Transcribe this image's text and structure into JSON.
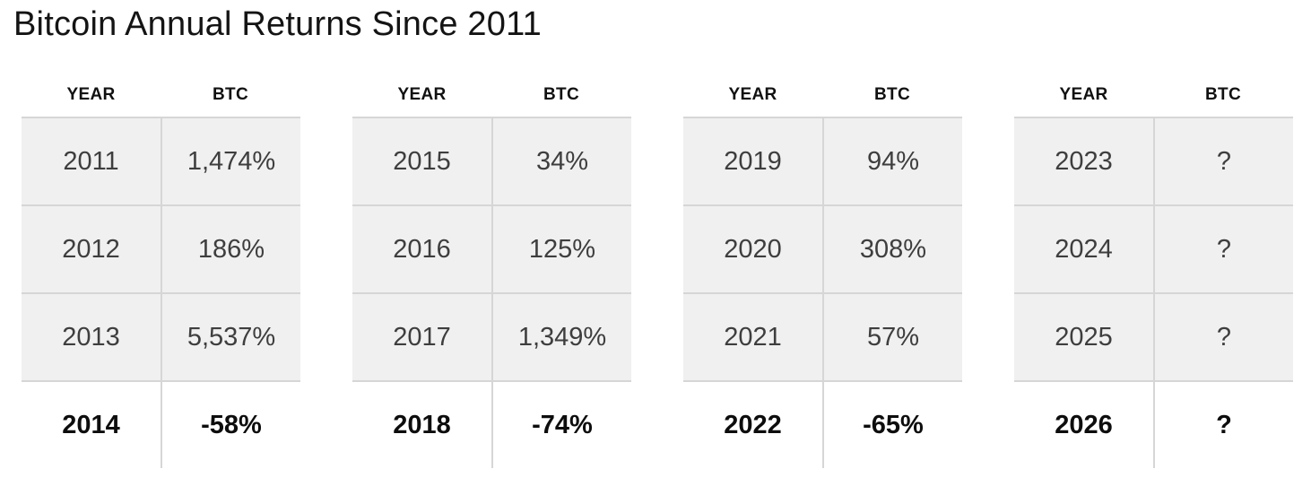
{
  "title": "Bitcoin Annual Returns Since 2011",
  "chart_data": {
    "type": "table",
    "title": "Bitcoin Annual Returns Since 2011",
    "columns": [
      "YEAR",
      "BTC"
    ],
    "groups": [
      {
        "headers": [
          "YEAR",
          "BTC"
        ],
        "rows": [
          [
            "2011",
            "1,474%"
          ],
          [
            "2012",
            "186%"
          ],
          [
            "2013",
            "5,537%"
          ]
        ],
        "final": [
          "2014",
          "-58%"
        ]
      },
      {
        "headers": [
          "YEAR",
          "BTC"
        ],
        "rows": [
          [
            "2015",
            "34%"
          ],
          [
            "2016",
            "125%"
          ],
          [
            "2017",
            "1,349%"
          ]
        ],
        "final": [
          "2018",
          "-74%"
        ]
      },
      {
        "headers": [
          "YEAR",
          "BTC"
        ],
        "rows": [
          [
            "2019",
            "94%"
          ],
          [
            "2020",
            "308%"
          ],
          [
            "2021",
            "57%"
          ]
        ],
        "final": [
          "2022",
          "-65%"
        ]
      },
      {
        "headers": [
          "YEAR",
          "BTC"
        ],
        "rows": [
          [
            "2023",
            "?"
          ],
          [
            "2024",
            "?"
          ],
          [
            "2025",
            "?"
          ]
        ],
        "final": [
          "2026",
          "?"
        ]
      }
    ]
  }
}
